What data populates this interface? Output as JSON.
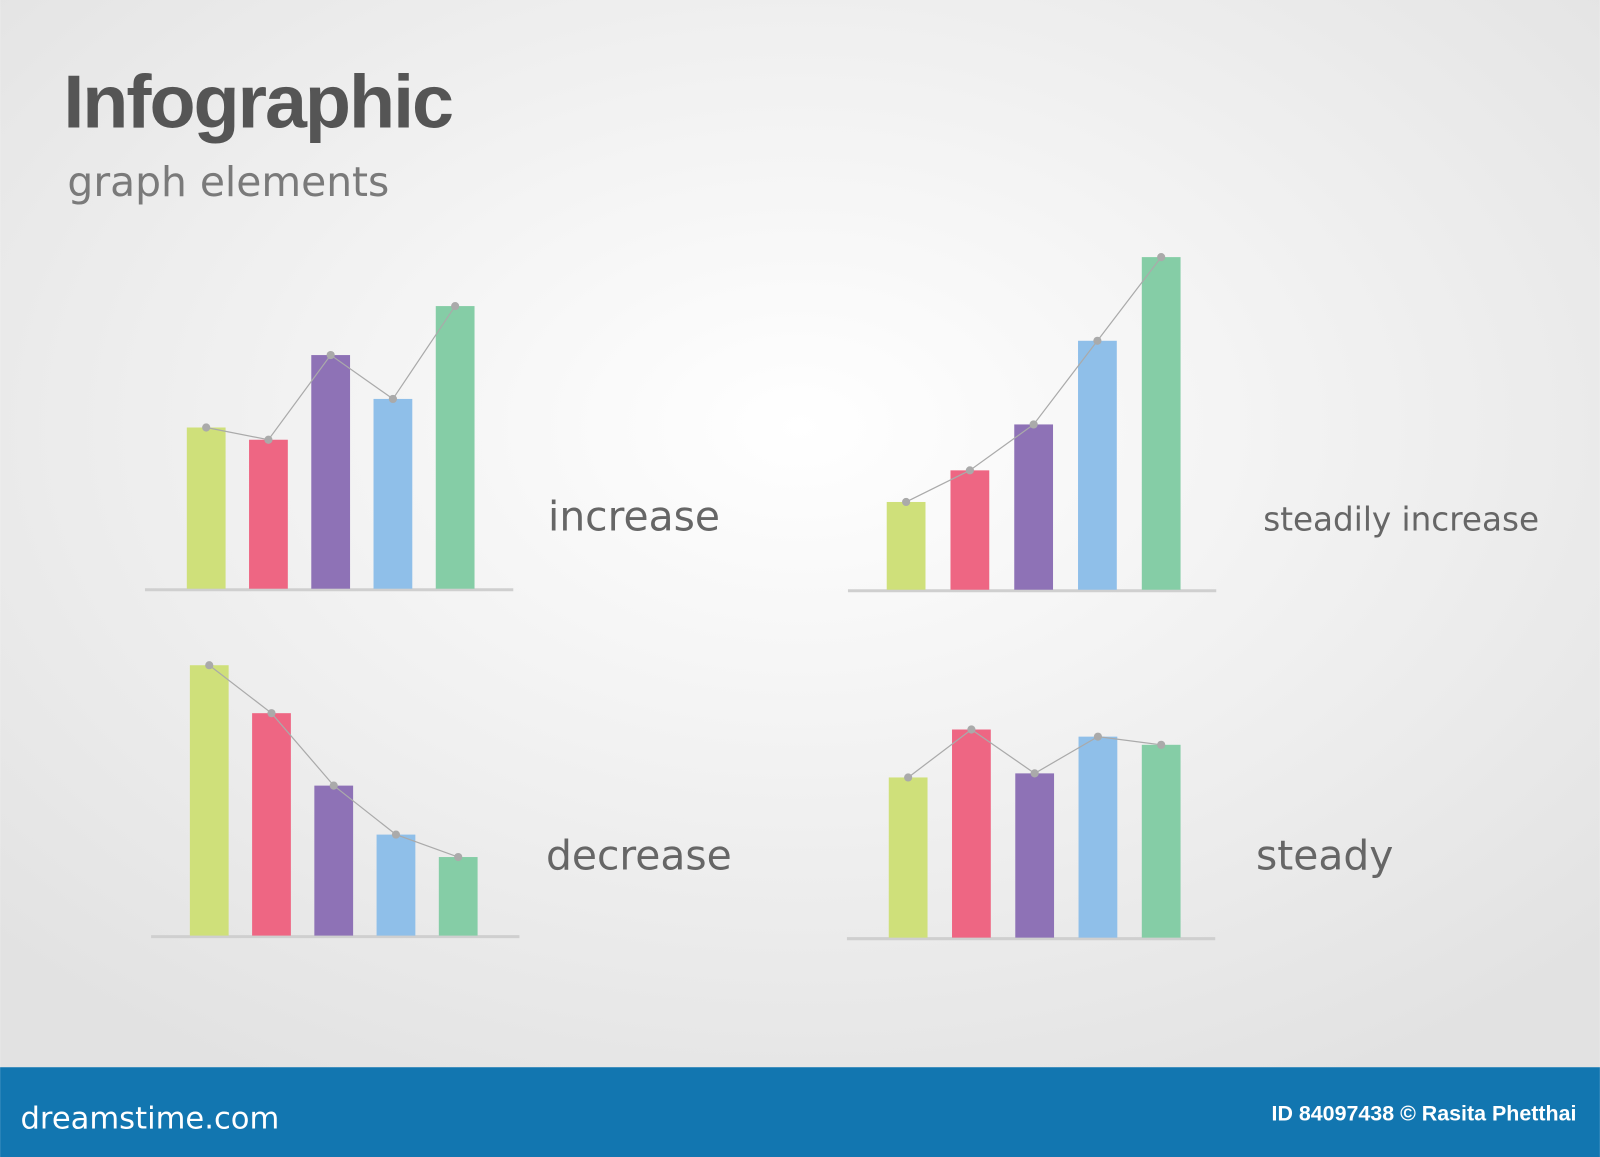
{
  "header": {
    "title": "Infographic",
    "subtitle": "graph elements"
  },
  "chart_data": [
    {
      "type": "bar",
      "label": "increase",
      "values": [
        158,
        146,
        229,
        186,
        277
      ],
      "ylim": [
        0,
        350
      ],
      "colors": [
        "#cfe07a",
        "#ee6683",
        "#8e72b6",
        "#8fbfe9",
        "#85cda6"
      ],
      "connector_line": true
    },
    {
      "type": "bar",
      "label": "steadily increase",
      "values": [
        86,
        117,
        162,
        244,
        326
      ],
      "ylim": [
        0,
        350
      ],
      "colors": [
        "#cfe07a",
        "#ee6683",
        "#8e72b6",
        "#8fbfe9",
        "#85cda6"
      ],
      "connector_line": true
    },
    {
      "type": "bar",
      "label": "decrease",
      "values": [
        265,
        218,
        147,
        99,
        77
      ],
      "ylim": [
        0,
        350
      ],
      "colors": [
        "#cfe07a",
        "#ee6683",
        "#8e72b6",
        "#8fbfe9",
        "#85cda6"
      ],
      "connector_line": true
    },
    {
      "type": "bar",
      "label": "steady",
      "values": [
        157,
        204,
        161,
        197,
        189
      ],
      "ylim": [
        0,
        350
      ],
      "colors": [
        "#cfe07a",
        "#ee6683",
        "#8e72b6",
        "#8fbfe9",
        "#85cda6"
      ],
      "connector_line": true
    }
  ],
  "footer": {
    "site": "dreamstime.com",
    "credit": "ID 84097438 © Rasita Phetthai"
  }
}
